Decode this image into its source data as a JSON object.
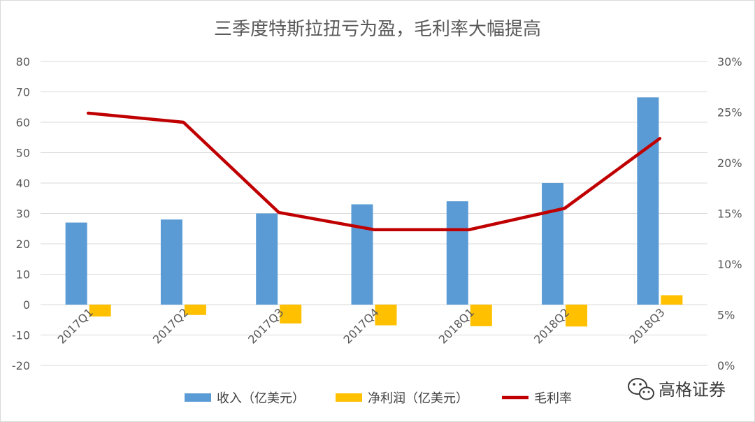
{
  "chart_data": {
    "type": "bar",
    "title": "三季度特斯拉扭亏为盈，毛利率大幅提高",
    "categories": [
      "2017Q1",
      "2017Q2",
      "2017Q3",
      "2017Q4",
      "2018Q1",
      "2018Q2",
      "2018Q3"
    ],
    "series": [
      {
        "name": "收入（亿美元）",
        "type": "bar",
        "axis": "left",
        "color": "#5B9BD5",
        "values": [
          27,
          28,
          30,
          33,
          34,
          40,
          68.2
        ]
      },
      {
        "name": "净利润（亿美元）",
        "type": "bar",
        "axis": "left",
        "color": "#FFC000",
        "values": [
          -3.9,
          -3.4,
          -6.2,
          -6.8,
          -7.1,
          -7.2,
          3.1
        ]
      },
      {
        "name": "毛利率",
        "type": "line",
        "axis": "right",
        "color": "#C00000",
        "values": [
          24.9,
          24.0,
          15.1,
          13.4,
          13.4,
          15.5,
          22.4
        ]
      }
    ],
    "y_left": {
      "min": -20,
      "max": 80,
      "step": 10,
      "ticks": [
        "80",
        "70",
        "60",
        "50",
        "40",
        "30",
        "20",
        "10",
        "0",
        "-10",
        "-20"
      ]
    },
    "y_right": {
      "min": 0,
      "max": 30,
      "step": 5,
      "ticks": [
        "30%",
        "25%",
        "20%",
        "15%",
        "10%",
        "5%",
        "0%"
      ]
    },
    "grid": true,
    "legend_position": "bottom"
  },
  "watermark": {
    "text": "高格证券",
    "icon": "wechat-icon"
  }
}
